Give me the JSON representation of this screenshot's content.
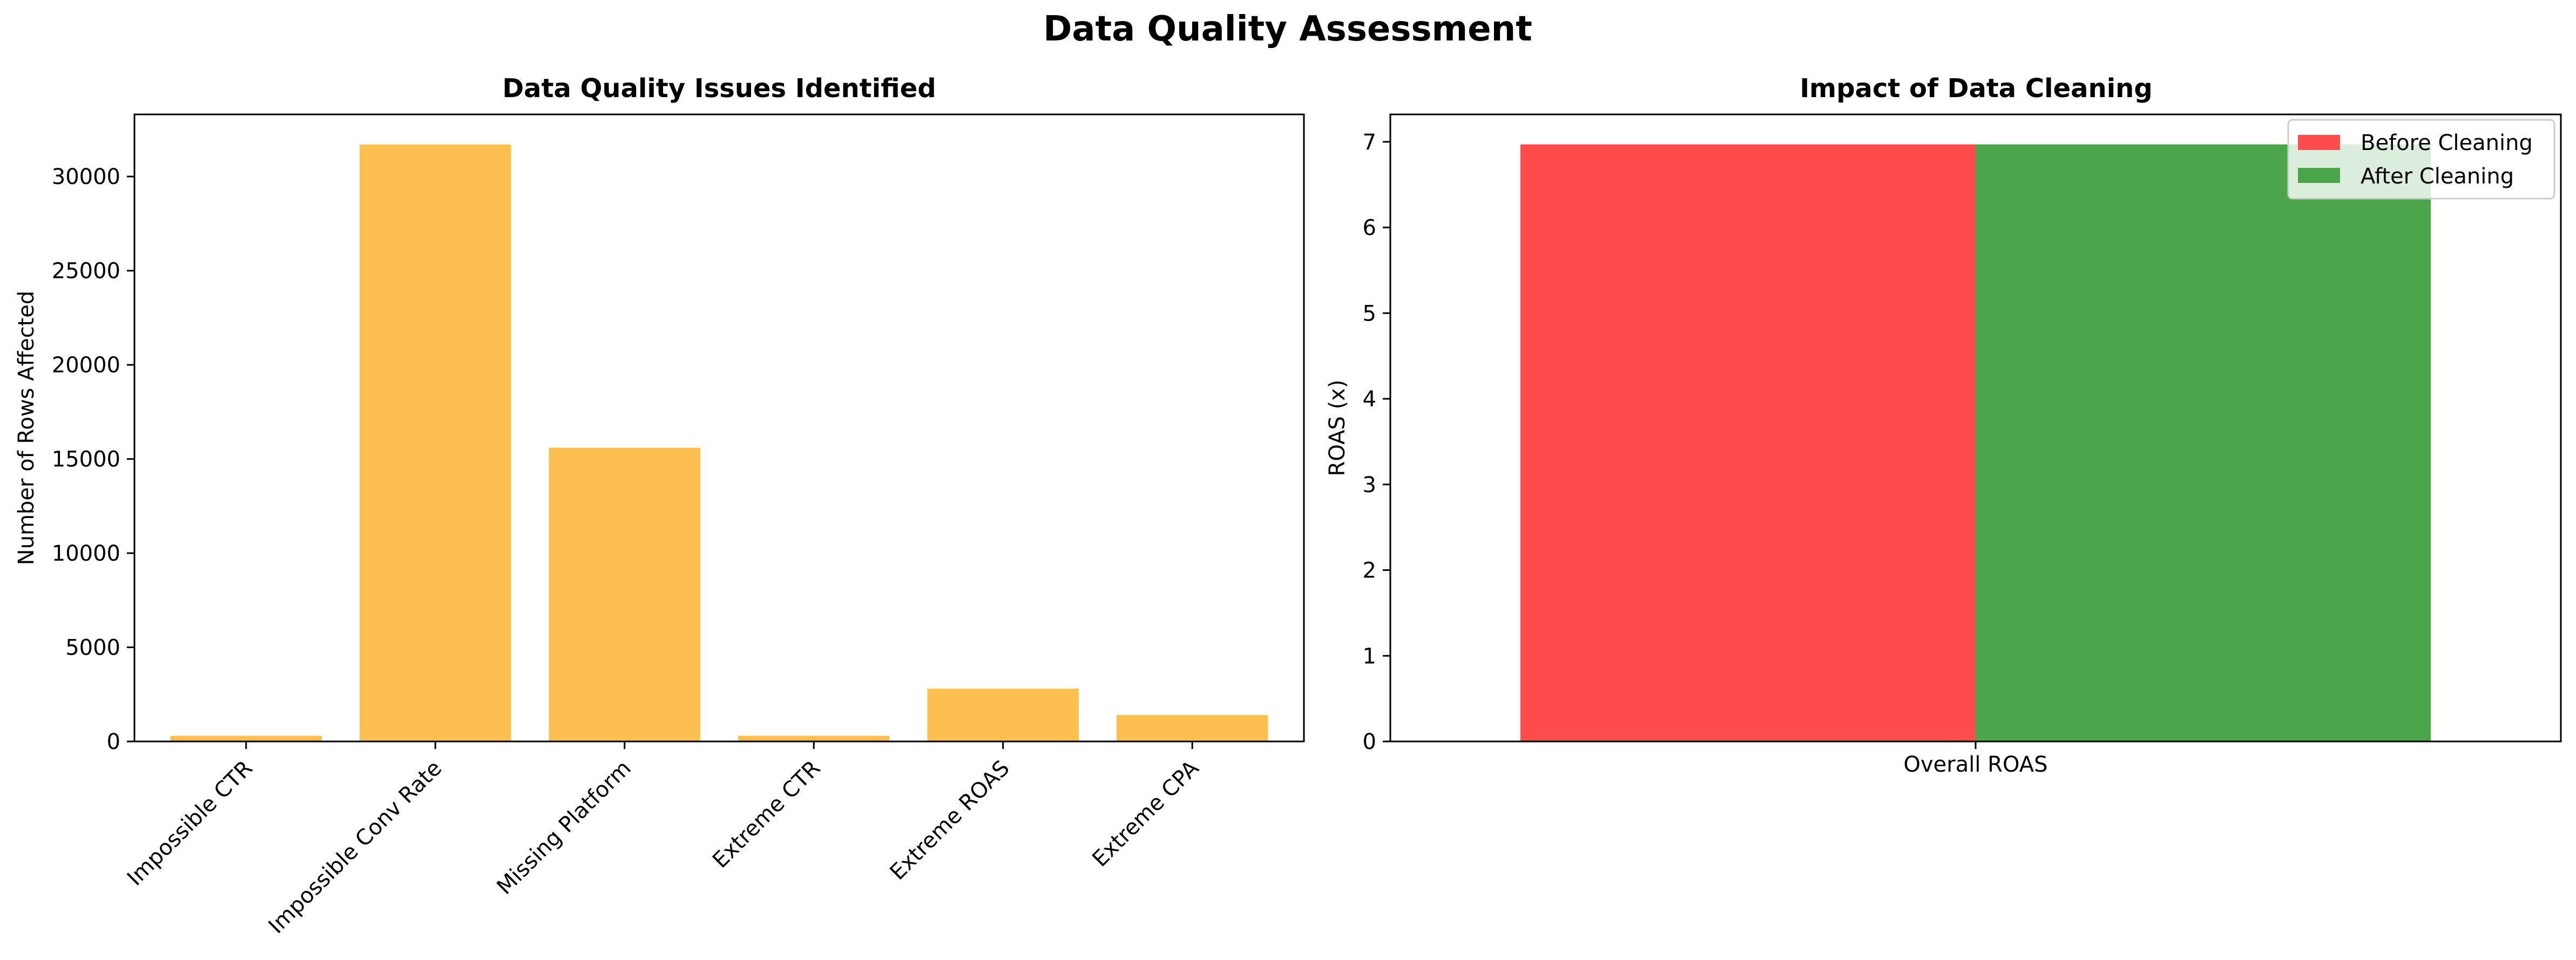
{
  "figure": {
    "title": "Data Quality Assessment"
  },
  "chart_data": [
    {
      "type": "bar",
      "title": "Data Quality Issues Identified",
      "xlabel": "",
      "ylabel": "Number of Rows Affected",
      "categories": [
        "Impossible CTR",
        "Impossible Conv Rate",
        "Missing Platform",
        "Extreme CTR",
        "Extreme ROAS",
        "Extreme CPA"
      ],
      "values": [
        300,
        31700,
        15600,
        300,
        2800,
        1400
      ],
      "ylim": [
        0,
        33300
      ],
      "yticks": [
        0,
        5000,
        10000,
        15000,
        20000,
        25000,
        30000
      ],
      "xtick_rotation": 45,
      "colors": [
        "#fdbf4f"
      ],
      "grid": false,
      "legend": null
    },
    {
      "type": "bar",
      "title": "Impact of Data Cleaning",
      "xlabel": "",
      "ylabel": "ROAS (x)",
      "categories": [
        "Overall ROAS"
      ],
      "series": [
        {
          "name": "Before Cleaning",
          "values": [
            6.97
          ],
          "color": "#ff4c4c"
        },
        {
          "name": "After Cleaning",
          "values": [
            6.97
          ],
          "color": "#4ba64b"
        }
      ],
      "ylim": [
        0,
        7.32
      ],
      "yticks": [
        0,
        1,
        2,
        3,
        4,
        5,
        6,
        7
      ],
      "grid": false,
      "legend": "top-right"
    }
  ]
}
